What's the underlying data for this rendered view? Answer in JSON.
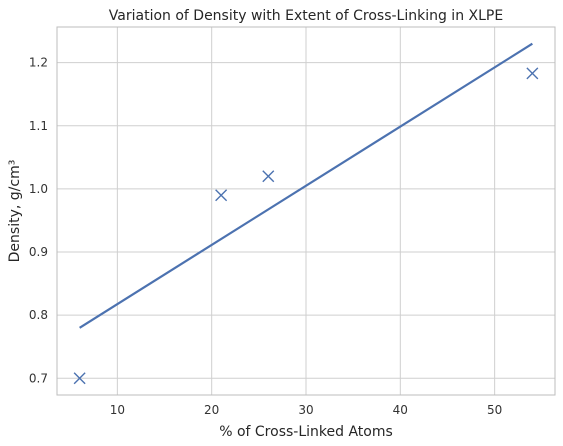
{
  "chart_data": {
    "type": "scatter",
    "title": "Variation of Density with Extent of Cross-Linking in XLPE",
    "xlabel": "% of Cross-Linked Atoms",
    "ylabel": "Density, g/cm³",
    "xlim": [
      3.6,
      56.4
    ],
    "ylim": [
      0.6735,
      1.2565
    ],
    "xticks": [
      10,
      20,
      30,
      40,
      50
    ],
    "yticks": [
      0.7,
      0.8,
      0.9,
      1.0,
      1.1,
      1.2
    ],
    "ytick_labels": [
      "0.7",
      "0.8",
      "0.9",
      "1.0",
      "1.1",
      "1.2"
    ],
    "grid": true,
    "series": [
      {
        "type": "scatter",
        "marker": "x",
        "color": "#4c72b0",
        "points": [
          {
            "x": 6,
            "y": 0.7
          },
          {
            "x": 21,
            "y": 0.99
          },
          {
            "x": 26,
            "y": 1.02
          },
          {
            "x": 54,
            "y": 1.183
          }
        ]
      },
      {
        "type": "line",
        "color": "#4c72b0",
        "points": [
          {
            "x": 6,
            "y": 0.78
          },
          {
            "x": 54,
            "y": 1.23
          }
        ]
      }
    ]
  }
}
